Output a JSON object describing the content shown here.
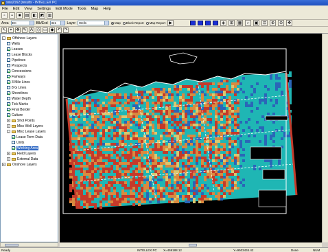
{
  "window": {
    "title": "ssla2162 [results - INTELLEX PC"
  },
  "menu": [
    "File",
    "Edit",
    "View",
    "Settings",
    "Edit Mode",
    "Tools",
    "Map",
    "Help"
  ],
  "toolbar2": {
    "area_label": "Area",
    "area_value": "EC",
    "blk_label": "Blk/Exd",
    "blk_value": "321",
    "layer_label": "Layer",
    "layer_value": "Wells",
    "radios": [
      {
        "label": "Map",
        "selected": true
      },
      {
        "label": "Block Report",
        "selected": false
      },
      {
        "label": "Map Report",
        "selected": false
      }
    ]
  },
  "tree": {
    "items": [
      {
        "label": "Offshore Layers",
        "type": "folder",
        "indent": 0,
        "expander": "-"
      },
      {
        "label": "Wells",
        "type": "check",
        "indent": 1,
        "checked": false
      },
      {
        "label": "Leases",
        "type": "check",
        "indent": 1,
        "checked": true
      },
      {
        "label": "Lease Blocks",
        "type": "check",
        "indent": 1,
        "checked": false
      },
      {
        "label": "Pipelines",
        "type": "check",
        "indent": 1,
        "checked": false
      },
      {
        "label": "Prospects",
        "type": "check",
        "indent": 1,
        "checked": false
      },
      {
        "label": "Concessions",
        "type": "check",
        "indent": 1,
        "checked": true
      },
      {
        "label": "Fairways",
        "type": "check",
        "indent": 1,
        "checked": true
      },
      {
        "label": "3 Mile Lines",
        "type": "check",
        "indent": 1,
        "checked": true
      },
      {
        "label": "8 G Lines",
        "type": "check",
        "indent": 1,
        "checked": false
      },
      {
        "label": "Shorelines",
        "type": "check",
        "indent": 1,
        "checked": true
      },
      {
        "label": "Water Depth",
        "type": "check",
        "indent": 1,
        "checked": false
      },
      {
        "label": "Tick Marks",
        "type": "check",
        "indent": 1,
        "checked": true
      },
      {
        "label": "Final Border",
        "type": "check",
        "indent": 1,
        "checked": true
      },
      {
        "label": "Culture",
        "type": "check",
        "indent": 1,
        "checked": true
      },
      {
        "label": "Shot Points",
        "type": "folder",
        "indent": 1,
        "expander": "+"
      },
      {
        "label": "Misc Well Layers",
        "type": "folder",
        "indent": 1,
        "expander": "+"
      },
      {
        "label": "Misc Lease Layers",
        "type": "folder",
        "indent": 1,
        "expander": "-"
      },
      {
        "label": "Lease Term Data",
        "type": "check",
        "indent": 2,
        "checked": true
      },
      {
        "label": "Units",
        "type": "check",
        "indent": 2,
        "checked": false
      },
      {
        "label": "Working Area",
        "type": "check",
        "indent": 2,
        "checked": true,
        "selected": true
      },
      {
        "label": "Field Layers",
        "type": "folder",
        "indent": 1,
        "expander": "+"
      },
      {
        "label": "External Data",
        "type": "folder",
        "indent": 1,
        "expander": "+"
      },
      {
        "label": "Onshore Layers",
        "type": "folder",
        "indent": 0,
        "expander": "+"
      }
    ]
  },
  "status": {
    "ready": "Ready",
    "app": "INTELLEX PC",
    "x": "X=459188.12",
    "y": "Y=9503434.42",
    "done": "Done",
    "num": "NUM"
  },
  "colors": {
    "sea": "#1fb6b4",
    "lease_orange": "#d98a3f",
    "lease_blue": "#2a66b8",
    "lease_red": "#c43a2a",
    "lease_yellow": "#d8c870",
    "land": "#000000",
    "grid": "#ffffff"
  }
}
